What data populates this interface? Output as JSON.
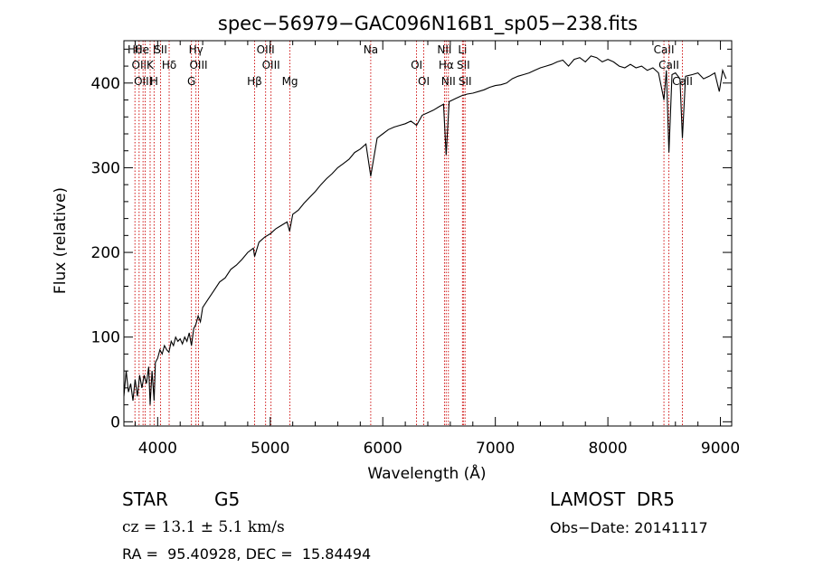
{
  "chart_data": {
    "type": "line",
    "title": "spec−56979−GAC096N16B1_sp05−238.fits",
    "xlabel": "Wavelength (Å)",
    "ylabel": "Flux (relative)",
    "xlim": [
      3700,
      9100
    ],
    "ylim": [
      -5,
      450
    ],
    "x_ticks": [
      4000,
      5000,
      6000,
      7000,
      8000,
      9000
    ],
    "y_ticks": [
      0,
      100,
      200,
      300,
      400
    ],
    "grid": false,
    "series": [
      {
        "color": "#000000",
        "points": [
          [
            3700,
            30
          ],
          [
            3720,
            60
          ],
          [
            3740,
            35
          ],
          [
            3760,
            45
          ],
          [
            3780,
            25
          ],
          [
            3800,
            50
          ],
          [
            3820,
            30
          ],
          [
            3840,
            55
          ],
          [
            3860,
            40
          ],
          [
            3880,
            55
          ],
          [
            3900,
            45
          ],
          [
            3920,
            65
          ],
          [
            3933,
            20
          ],
          [
            3950,
            60
          ],
          [
            3968,
            25
          ],
          [
            3980,
            70
          ],
          [
            4000,
            75
          ],
          [
            4020,
            85
          ],
          [
            4040,
            80
          ],
          [
            4060,
            90
          ],
          [
            4080,
            85
          ],
          [
            4100,
            82
          ],
          [
            4120,
            95
          ],
          [
            4140,
            90
          ],
          [
            4160,
            100
          ],
          [
            4180,
            95
          ],
          [
            4200,
            98
          ],
          [
            4220,
            92
          ],
          [
            4240,
            100
          ],
          [
            4260,
            95
          ],
          [
            4280,
            105
          ],
          [
            4300,
            90
          ],
          [
            4320,
            110
          ],
          [
            4340,
            115
          ],
          [
            4360,
            125
          ],
          [
            4380,
            118
          ],
          [
            4400,
            135
          ],
          [
            4450,
            145
          ],
          [
            4500,
            155
          ],
          [
            4550,
            165
          ],
          [
            4600,
            170
          ],
          [
            4650,
            180
          ],
          [
            4700,
            185
          ],
          [
            4750,
            192
          ],
          [
            4800,
            200
          ],
          [
            4850,
            205
          ],
          [
            4861,
            195
          ],
          [
            4900,
            212
          ],
          [
            4950,
            218
          ],
          [
            5000,
            222
          ],
          [
            5050,
            228
          ],
          [
            5100,
            232
          ],
          [
            5150,
            236
          ],
          [
            5172,
            225
          ],
          [
            5200,
            245
          ],
          [
            5250,
            250
          ],
          [
            5300,
            258
          ],
          [
            5350,
            265
          ],
          [
            5400,
            272
          ],
          [
            5450,
            280
          ],
          [
            5500,
            287
          ],
          [
            5550,
            293
          ],
          [
            5600,
            300
          ],
          [
            5650,
            305
          ],
          [
            5700,
            310
          ],
          [
            5750,
            318
          ],
          [
            5800,
            322
          ],
          [
            5850,
            328
          ],
          [
            5893,
            290
          ],
          [
            5950,
            335
          ],
          [
            6000,
            340
          ],
          [
            6050,
            345
          ],
          [
            6100,
            348
          ],
          [
            6150,
            350
          ],
          [
            6200,
            352
          ],
          [
            6250,
            355
          ],
          [
            6300,
            350
          ],
          [
            6350,
            362
          ],
          [
            6400,
            365
          ],
          [
            6450,
            368
          ],
          [
            6500,
            372
          ],
          [
            6540,
            375
          ],
          [
            6563,
            315
          ],
          [
            6590,
            378
          ],
          [
            6650,
            382
          ],
          [
            6700,
            385
          ],
          [
            6750,
            387
          ],
          [
            6800,
            388
          ],
          [
            6850,
            390
          ],
          [
            6900,
            392
          ],
          [
            6950,
            395
          ],
          [
            7000,
            397
          ],
          [
            7050,
            398
          ],
          [
            7100,
            400
          ],
          [
            7150,
            405
          ],
          [
            7200,
            408
          ],
          [
            7250,
            410
          ],
          [
            7300,
            412
          ],
          [
            7350,
            415
          ],
          [
            7400,
            418
          ],
          [
            7450,
            420
          ],
          [
            7500,
            422
          ],
          [
            7550,
            425
          ],
          [
            7600,
            427
          ],
          [
            7650,
            420
          ],
          [
            7700,
            428
          ],
          [
            7750,
            430
          ],
          [
            7800,
            425
          ],
          [
            7850,
            432
          ],
          [
            7900,
            430
          ],
          [
            7950,
            425
          ],
          [
            8000,
            428
          ],
          [
            8050,
            425
          ],
          [
            8100,
            420
          ],
          [
            8150,
            418
          ],
          [
            8200,
            422
          ],
          [
            8250,
            418
          ],
          [
            8300,
            420
          ],
          [
            8350,
            415
          ],
          [
            8400,
            418
          ],
          [
            8450,
            412
          ],
          [
            8498,
            380
          ],
          [
            8520,
            415
          ],
          [
            8542,
            318
          ],
          [
            8570,
            410
          ],
          [
            8600,
            412
          ],
          [
            8640,
            405
          ],
          [
            8662,
            335
          ],
          [
            8690,
            408
          ],
          [
            8750,
            410
          ],
          [
            8800,
            412
          ],
          [
            8850,
            405
          ],
          [
            8900,
            408
          ],
          [
            8950,
            412
          ],
          [
            8990,
            390
          ],
          [
            9020,
            415
          ],
          [
            9050,
            405
          ]
        ]
      }
    ],
    "lines": [
      {
        "wl": 3798,
        "label": "Hθ"
      },
      {
        "wl": 3835,
        "label": "OII"
      },
      {
        "wl": 3870,
        "label": "OIII"
      },
      {
        "wl": 3889,
        "label": "He I"
      },
      {
        "wl": 3933,
        "label": "K"
      },
      {
        "wl": 3968,
        "label": "H"
      },
      {
        "wl": 4026,
        "label": "SII"
      },
      {
        "wl": 4102,
        "label": "Hδ"
      },
      {
        "wl": 4300,
        "label": "G"
      },
      {
        "wl": 4340,
        "label": "Hγ"
      },
      {
        "wl": 4363,
        "label": "OIII"
      },
      {
        "wl": 4861,
        "label": "Hβ"
      },
      {
        "wl": 4959,
        "label": "OIII"
      },
      {
        "wl": 5007,
        "label": "OIII"
      },
      {
        "wl": 5175,
        "label": "Mg"
      },
      {
        "wl": 5893,
        "label": "Na"
      },
      {
        "wl": 6300,
        "label": "OI"
      },
      {
        "wl": 6364,
        "label": "OI"
      },
      {
        "wl": 6548,
        "label": "NII"
      },
      {
        "wl": 6563,
        "label": "Hα"
      },
      {
        "wl": 6583,
        "label": "NII"
      },
      {
        "wl": 6708,
        "label": "Li"
      },
      {
        "wl": 6716,
        "label": "SII"
      },
      {
        "wl": 6731,
        "label": "SII"
      },
      {
        "wl": 8498,
        "label": "CaII"
      },
      {
        "wl": 8542,
        "label": "CaII"
      },
      {
        "wl": 8662,
        "label": "CaII"
      }
    ]
  },
  "info": {
    "object_class": "STAR",
    "subclass": "G5",
    "survey": "LAMOST  DR5",
    "velocity": "cz = 13.1 ± 5.1 km/s",
    "obs_date": "Obs−Date: 20141117",
    "coords": "RA =  95.40928, DEC =  15.84494"
  },
  "colors": {
    "spectrum": "#000000",
    "line_markers": "#cc0000"
  }
}
